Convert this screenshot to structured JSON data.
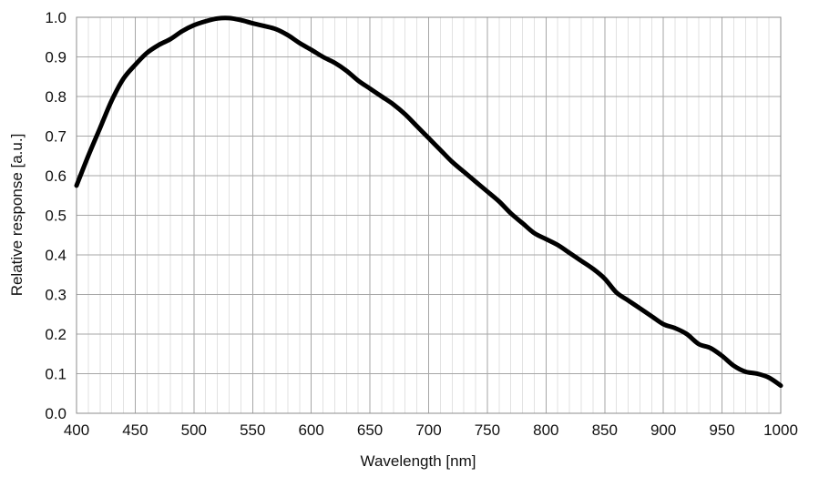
{
  "chart_data": {
    "type": "line",
    "xlabel": "Wavelength  [nm]",
    "ylabel": "Relative response [a.u.]",
    "xlim": [
      400,
      1000
    ],
    "ylim": [
      0.0,
      1.0
    ],
    "x_ticks": [
      400,
      450,
      500,
      550,
      600,
      650,
      700,
      750,
      800,
      850,
      900,
      950,
      1000
    ],
    "x_tick_labels": [
      "400",
      "450",
      "500",
      "550",
      "600",
      "650",
      "700",
      "750",
      "800",
      "850",
      "900",
      "950",
      "1000"
    ],
    "y_ticks": [
      0.0,
      0.1,
      0.2,
      0.3,
      0.4,
      0.5,
      0.6,
      0.7,
      0.8,
      0.9,
      1.0
    ],
    "y_tick_labels": [
      "0.0",
      "0.1",
      "0.2",
      "0.3",
      "0.4",
      "0.5",
      "0.6",
      "0.7",
      "0.8",
      "0.9",
      "1.0"
    ],
    "minor_x_step": 10,
    "grid": true,
    "colors": {
      "line": "#000000",
      "major_grid": "#a6a6a6",
      "minor_grid": "#e2e2e2",
      "plot_border": "#8c8c8c"
    },
    "series": [
      {
        "x": [
          400,
          410,
          420,
          430,
          440,
          450,
          460,
          470,
          480,
          490,
          500,
          510,
          520,
          530,
          540,
          550,
          560,
          570,
          580,
          590,
          600,
          610,
          620,
          630,
          640,
          650,
          660,
          670,
          680,
          690,
          700,
          710,
          720,
          730,
          740,
          750,
          760,
          770,
          780,
          790,
          800,
          810,
          820,
          830,
          840,
          850,
          860,
          870,
          880,
          890,
          900,
          910,
          920,
          930,
          940,
          950,
          960,
          970,
          980,
          990,
          1000
        ],
        "values": [
          0.575,
          0.65,
          0.72,
          0.79,
          0.845,
          0.88,
          0.91,
          0.93,
          0.945,
          0.965,
          0.98,
          0.99,
          0.997,
          0.998,
          0.993,
          0.985,
          0.978,
          0.97,
          0.955,
          0.935,
          0.918,
          0.9,
          0.885,
          0.865,
          0.84,
          0.82,
          0.8,
          0.78,
          0.755,
          0.725,
          0.695,
          0.665,
          0.635,
          0.61,
          0.585,
          0.56,
          0.535,
          0.505,
          0.48,
          0.455,
          0.44,
          0.425,
          0.405,
          0.385,
          0.365,
          0.34,
          0.305,
          0.285,
          0.265,
          0.245,
          0.225,
          0.215,
          0.2,
          0.175,
          0.165,
          0.145,
          0.12,
          0.105,
          0.1,
          0.09,
          0.07
        ]
      }
    ]
  }
}
